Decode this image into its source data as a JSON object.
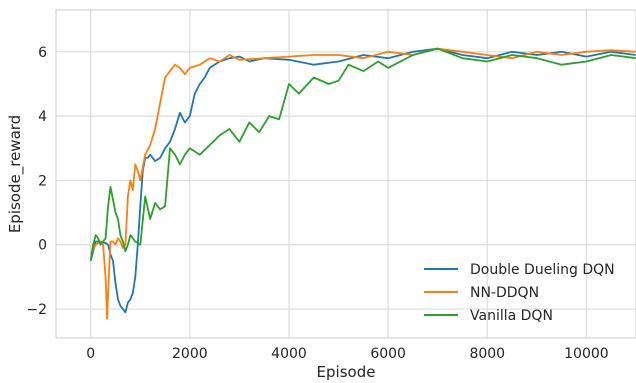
{
  "chart_data": {
    "type": "line",
    "title": "",
    "xlabel": "Episode",
    "ylabel": "Episode_reward",
    "xlim": [
      -700,
      11000
    ],
    "ylim": [
      -2.9,
      7.3
    ],
    "xticks": [
      0,
      2000,
      4000,
      6000,
      8000,
      10000
    ],
    "xtick_labels": [
      "0",
      "2000",
      "4000",
      "6000",
      "8000",
      "10000"
    ],
    "yticks": [
      -2,
      0,
      2,
      4,
      6
    ],
    "ytick_labels": [
      "−2",
      "0",
      "2",
      "4",
      "6"
    ],
    "grid": true,
    "legend_position": "lower-right",
    "series": [
      {
        "name": "Double Dueling DQN",
        "color": "#1f77b4",
        "x": [
          0,
          100,
          200,
          300,
          350,
          400,
          450,
          500,
          550,
          600,
          650,
          700,
          750,
          800,
          850,
          900,
          950,
          1000,
          1050,
          1100,
          1150,
          1200,
          1300,
          1400,
          1500,
          1600,
          1700,
          1800,
          1900,
          2000,
          2100,
          2200,
          2300,
          2400,
          2500,
          2600,
          2800,
          3000,
          3200,
          3500,
          4000,
          4500,
          5000,
          5500,
          6000,
          6500,
          7000,
          7500,
          8000,
          8500,
          9000,
          9500,
          10000,
          10500,
          11000
        ],
        "y": [
          -0.5,
          0.1,
          0.1,
          0.05,
          0.0,
          -0.3,
          -0.5,
          -1.2,
          -1.7,
          -1.9,
          -2.0,
          -2.1,
          -1.8,
          -1.7,
          -1.5,
          -1.0,
          0.0,
          1.2,
          2.3,
          2.7,
          2.7,
          2.8,
          2.6,
          2.7,
          3.0,
          3.2,
          3.6,
          4.1,
          3.8,
          4.0,
          4.7,
          5.0,
          5.2,
          5.5,
          5.6,
          5.7,
          5.8,
          5.85,
          5.7,
          5.8,
          5.75,
          5.6,
          5.7,
          5.9,
          5.8,
          6.0,
          6.1,
          5.9,
          5.8,
          6.0,
          5.9,
          6.0,
          5.85,
          6.0,
          5.9
        ]
      },
      {
        "name": "NN-DDQN",
        "color": "#ff7f0e",
        "x": [
          0,
          100,
          200,
          250,
          300,
          330,
          350,
          400,
          450,
          500,
          550,
          600,
          650,
          700,
          750,
          800,
          850,
          900,
          950,
          1000,
          1100,
          1200,
          1300,
          1400,
          1500,
          1600,
          1700,
          1800,
          1900,
          2000,
          2200,
          2400,
          2600,
          2800,
          3000,
          3500,
          4000,
          4500,
          5000,
          5500,
          6000,
          6500,
          7000,
          7500,
          8000,
          8500,
          9000,
          9500,
          10000,
          10500,
          11000
        ],
        "y": [
          -0.3,
          0.0,
          0.1,
          0.0,
          -1.0,
          -2.3,
          -1.5,
          0.1,
          0.1,
          0.0,
          0.2,
          0.1,
          -0.1,
          0.0,
          1.5,
          2.0,
          1.7,
          2.5,
          2.3,
          2.0,
          2.8,
          3.1,
          3.6,
          4.4,
          5.2,
          5.4,
          5.6,
          5.5,
          5.3,
          5.5,
          5.6,
          5.8,
          5.7,
          5.9,
          5.75,
          5.8,
          5.85,
          5.9,
          5.9,
          5.8,
          6.0,
          5.9,
          6.1,
          6.0,
          5.9,
          5.8,
          6.0,
          5.9,
          6.0,
          6.05,
          6.0
        ]
      },
      {
        "name": "Vanilla DQN",
        "color": "#2ca02c",
        "x": [
          0,
          50,
          100,
          150,
          200,
          250,
          300,
          350,
          400,
          450,
          500,
          550,
          600,
          650,
          700,
          750,
          800,
          900,
          1000,
          1100,
          1200,
          1300,
          1400,
          1500,
          1600,
          1700,
          1800,
          1900,
          2000,
          2200,
          2400,
          2600,
          2800,
          3000,
          3200,
          3400,
          3600,
          3800,
          4000,
          4200,
          4500,
          4800,
          5000,
          5200,
          5500,
          5800,
          6000,
          6500,
          7000,
          7500,
          8000,
          8500,
          9000,
          9500,
          10000,
          10500,
          11000
        ],
        "y": [
          -0.5,
          0.0,
          0.3,
          0.2,
          0.0,
          0.1,
          0.2,
          1.2,
          1.8,
          1.4,
          1.0,
          0.8,
          0.3,
          0.1,
          -0.2,
          0.0,
          0.3,
          0.1,
          0.0,
          1.5,
          0.8,
          1.3,
          1.1,
          1.2,
          3.0,
          2.8,
          2.5,
          2.8,
          3.0,
          2.8,
          3.1,
          3.4,
          3.6,
          3.2,
          3.8,
          3.5,
          4.0,
          3.9,
          5.0,
          4.7,
          5.2,
          5.0,
          5.1,
          5.6,
          5.4,
          5.7,
          5.5,
          5.9,
          6.1,
          5.8,
          5.7,
          5.9,
          5.8,
          5.6,
          5.7,
          5.9,
          5.8
        ]
      }
    ]
  }
}
